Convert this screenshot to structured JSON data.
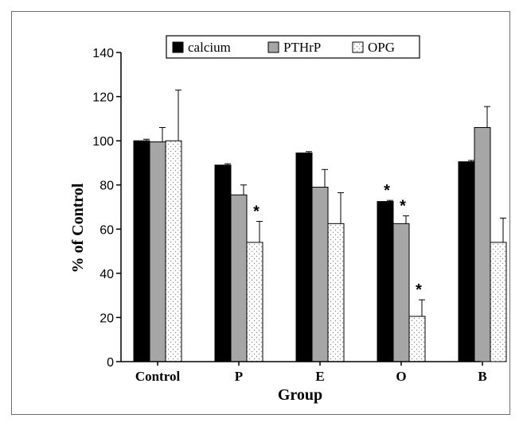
{
  "chart_data": {
    "type": "bar",
    "title": "",
    "xlabel": "Group",
    "ylabel": "% of Control",
    "categories": [
      "Control",
      "P",
      "E",
      "O",
      "B"
    ],
    "ylim": [
      0,
      140
    ],
    "yticks": [
      0,
      20,
      40,
      60,
      80,
      100,
      120,
      140
    ],
    "legend_position": "top",
    "series": [
      {
        "name": "calcium",
        "color": "#000000",
        "pattern": "solid",
        "values": [
          100,
          89,
          94.5,
          72.5,
          90.5
        ],
        "errors": [
          0.7,
          0.6,
          0.6,
          0.5,
          0.6
        ],
        "significant": [
          false,
          false,
          false,
          true,
          false
        ]
      },
      {
        "name": "PTHrP",
        "color": "#a6a6a6",
        "pattern": "solid",
        "values": [
          99.5,
          75.5,
          79,
          62.5,
          106
        ],
        "errors": [
          6.5,
          4.5,
          8,
          3.5,
          9.5
        ],
        "significant": [
          false,
          false,
          false,
          true,
          false
        ]
      },
      {
        "name": "OPG",
        "color": "#ffffff",
        "pattern": "dotted",
        "values": [
          100,
          54,
          62.5,
          20.5,
          54
        ],
        "errors": [
          23,
          9.5,
          14,
          7.5,
          11
        ],
        "significant": [
          false,
          true,
          false,
          true,
          false
        ]
      }
    ],
    "significance_marker": "*"
  }
}
